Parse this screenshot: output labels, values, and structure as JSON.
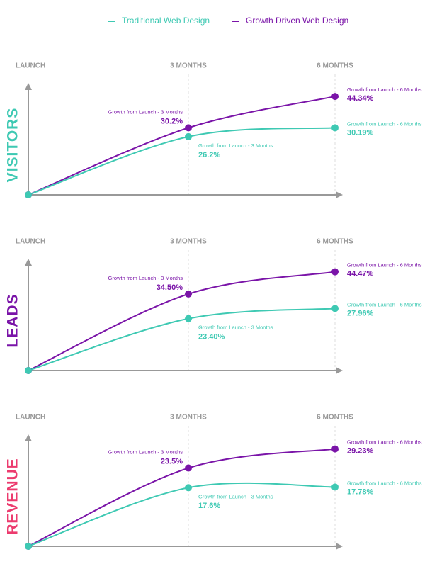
{
  "chart_data": [
    {
      "type": "line",
      "ylabel": "VISITORS",
      "ylabel_color": "#3ec9b3",
      "categories": [
        "LAUNCH",
        "3 MONTHS",
        "6 MONTHS"
      ],
      "ylim": [
        0,
        45
      ],
      "series": [
        {
          "name": "Traditional Web Design",
          "color": "#3ec9b3",
          "values": [
            0,
            26.2,
            30.19
          ],
          "value_labels": [
            null,
            "26.2%",
            "30.19%"
          ],
          "point_labels": [
            null,
            "Growth from Launch - 3 Months",
            "Growth from Launch - 6 Months"
          ]
        },
        {
          "name": "Growth Driven Web Design",
          "color": "#7a14a8",
          "values": [
            0,
            30.2,
            44.34
          ],
          "value_labels": [
            null,
            "30.2%",
            "44.34%"
          ],
          "point_labels": [
            null,
            "Growth from Launch - 3 Months",
            "Growth from Launch - 6 Months"
          ]
        }
      ]
    },
    {
      "type": "line",
      "ylabel": "LEADS",
      "ylabel_color": "#7a14a8",
      "categories": [
        "LAUNCH",
        "3 MONTHS",
        "6 MONTHS"
      ],
      "ylim": [
        0,
        45
      ],
      "series": [
        {
          "color": "#3ec9b3",
          "values": [
            0,
            23.4,
            27.96
          ],
          "value_labels": [
            null,
            "23.40%",
            "27.96%"
          ],
          "point_labels": [
            null,
            "Growth from Launch - 3 Months",
            "Growth from Launch - 6 Months"
          ]
        },
        {
          "color": "#7a14a8",
          "values": [
            0,
            34.5,
            44.47
          ],
          "value_labels": [
            null,
            "34.50%",
            "44.47%"
          ],
          "point_labels": [
            null,
            "Growth from Launch - 3 Months",
            "Growth from Launch - 6 Months"
          ]
        }
      ]
    },
    {
      "type": "line",
      "ylabel": "REVENUE",
      "ylabel_color": "#ec3b6e",
      "categories": [
        "LAUNCH",
        "3 MONTHS",
        "6 MONTHS"
      ],
      "ylim": [
        0,
        30
      ],
      "series": [
        {
          "color": "#3ec9b3",
          "values": [
            0,
            17.6,
            17.78
          ],
          "value_labels": [
            null,
            "17.6%",
            "17.78%"
          ],
          "point_labels": [
            null,
            "Growth from Launch - 3 Months",
            "Growth from Launch - 6 Months"
          ]
        },
        {
          "color": "#7a14a8",
          "values": [
            0,
            23.5,
            29.23
          ],
          "value_labels": [
            null,
            "23.5%",
            "29.23%"
          ],
          "point_labels": [
            null,
            "Growth from Launch - 3 Months",
            "Growth from Launch - 6 Months"
          ]
        }
      ]
    }
  ]
}
